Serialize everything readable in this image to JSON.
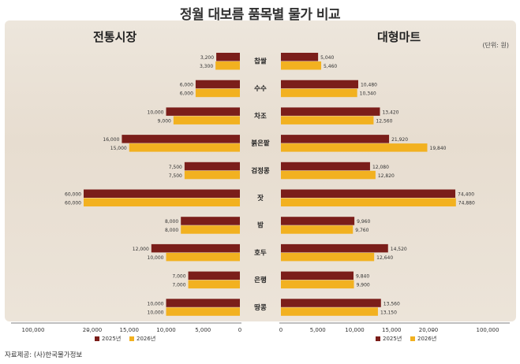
{
  "title": "정월 대보름 품목별 물가 비교",
  "source": "자료제공: (사)한국물가정보",
  "chart_data": [
    {
      "type": "bar",
      "orientation": "horizontal",
      "title": "전통시장",
      "direction": "leftward",
      "categories": [
        "찹쌀",
        "수수",
        "차조",
        "붉은팥",
        "검정콩",
        "잣",
        "밤",
        "호두",
        "은행",
        "땅콩"
      ],
      "series": [
        {
          "name": "2025년",
          "color": "#7b1e1a",
          "values": [
            3200,
            6000,
            10000,
            16000,
            7500,
            60000,
            8000,
            12000,
            7000,
            10000
          ]
        },
        {
          "name": "2026년",
          "color": "#f2b120",
          "values": [
            3300,
            6000,
            9000,
            15000,
            7500,
            60000,
            8000,
            10000,
            7000,
            10000
          ]
        }
      ],
      "xlim": [
        0,
        100000
      ],
      "xticks": [
        "100,000",
        "–",
        "20,000",
        "15,000",
        "10,000",
        "5,000",
        "0"
      ],
      "legend": "bottom"
    },
    {
      "type": "bar",
      "orientation": "horizontal",
      "title": "대형마트",
      "direction": "rightward",
      "unit": "(단위: 원)",
      "categories": [
        "찹쌀",
        "수수",
        "차조",
        "붉은팥",
        "검정콩",
        "잣",
        "밤",
        "호두",
        "은행",
        "땅콩"
      ],
      "series": [
        {
          "name": "2025년",
          "color": "#7b1e1a",
          "values": [
            5040,
            10480,
            13420,
            21920,
            12080,
            74400,
            9960,
            14520,
            9840,
            13560
          ]
        },
        {
          "name": "2026년",
          "color": "#f2b120",
          "values": [
            5460,
            10340,
            12560,
            19840,
            12820,
            74880,
            9760,
            12640,
            9900,
            13150
          ]
        }
      ],
      "xlim": [
        0,
        100000
      ],
      "xticks": [
        "0",
        "5,000",
        "10,000",
        "15,000",
        "20,000",
        "–",
        "100,000"
      ],
      "legend": "bottom"
    }
  ]
}
